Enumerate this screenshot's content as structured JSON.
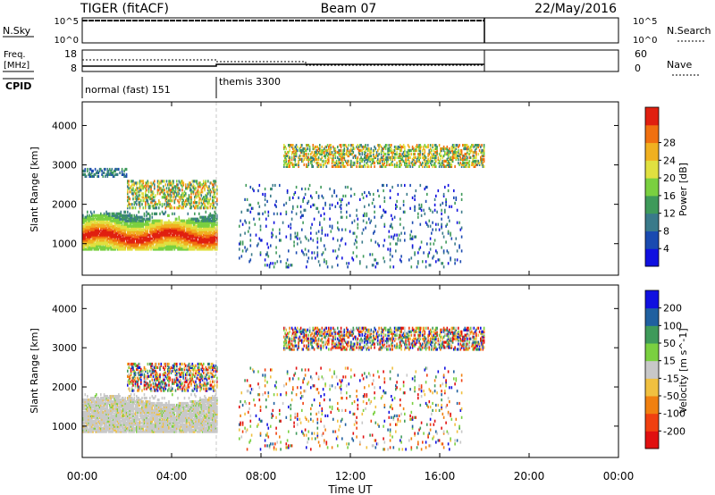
{
  "header": {
    "title_left": "TIGER (fitACF)",
    "title_center": "Beam 07",
    "title_right": "22/May/2016"
  },
  "aux": {
    "nsky_label": "N.Sky",
    "nsky_ticks": [
      "10^5",
      "10^0"
    ],
    "nsearch_label": "N.Search",
    "nsearch_ticks": [
      "10^5",
      "10^0"
    ],
    "freq_label_1": "Freq.",
    "freq_label_2": "[MHz]",
    "freq_ticks": [
      "18",
      "8"
    ],
    "nave_label": "Nave",
    "nave_ticks": [
      "60",
      "0"
    ],
    "cpid_label": "CPID",
    "cpid_modes": [
      {
        "name": "normal (fast) 151",
        "start_hour": 0,
        "end_hour": 6
      },
      {
        "name": "themis 3300",
        "start_hour": 6,
        "end_hour": 18
      }
    ]
  },
  "chart_data": [
    {
      "type": "heatmap",
      "title": "",
      "xlabel": "Time UT",
      "ylabel": "Slant Range [km]",
      "xlim": [
        0,
        24
      ],
      "ylim": [
        200,
        4600
      ],
      "x_ticks": [
        "00:00",
        "04:00",
        "08:00",
        "12:00",
        "16:00",
        "20:00",
        "00:00"
      ],
      "y_ticks": [
        {
          "value": 1000,
          "label": "1000"
        },
        {
          "value": 2000,
          "label": "2000"
        },
        {
          "value": 3000,
          "label": "3000"
        },
        {
          "value": 4000,
          "label": "4000"
        }
      ],
      "colorbar": {
        "label": "Power [dB]",
        "ticks": [
          "4",
          "8",
          "12",
          "16",
          "20",
          "24",
          "28"
        ],
        "range": [
          0,
          32
        ],
        "colors": [
          "#1010e0",
          "#1a4ab0",
          "#3a7a8a",
          "#3f9a5a",
          "#7ad040",
          "#e0e040",
          "#f0b020",
          "#f07010",
          "#e02010"
        ]
      },
      "scatter_regions": [
        {
          "hours": [
            0,
            6
          ],
          "range_km": [
            850,
            1800
          ],
          "level": "high"
        },
        {
          "hours": [
            2,
            6
          ],
          "range_km": [
            1900,
            2600
          ],
          "level": "medium"
        },
        {
          "hours": [
            0,
            2
          ],
          "range_km": [
            2700,
            2900
          ],
          "level": "low"
        },
        {
          "hours": [
            9,
            18
          ],
          "range_km": [
            2950,
            3500
          ],
          "level": "medium"
        },
        {
          "hours": [
            7,
            17
          ],
          "range_km": [
            400,
            2500
          ],
          "level": "sparse"
        }
      ]
    },
    {
      "type": "heatmap",
      "title": "",
      "xlabel": "Time UT",
      "ylabel": "Slant Range [km]",
      "xlim": [
        0,
        24
      ],
      "ylim": [
        200,
        4600
      ],
      "x_ticks": [
        "00:00",
        "04:00",
        "08:00",
        "12:00",
        "16:00",
        "20:00",
        "00:00"
      ],
      "y_ticks": [
        {
          "value": 1000,
          "label": "1000"
        },
        {
          "value": 2000,
          "label": "2000"
        },
        {
          "value": 3000,
          "label": "3000"
        },
        {
          "value": 4000,
          "label": "4000"
        }
      ],
      "colorbar": {
        "label": "Velocity [m s^-1]",
        "ticks": [
          "200",
          "100",
          "50",
          "15",
          "-15",
          "-50",
          "-100",
          "-200"
        ],
        "range": [
          -250,
          250
        ],
        "colors": [
          "#1010e0",
          "#2060a0",
          "#3f9a5a",
          "#7ad040",
          "#c8c8c8",
          "#f0c040",
          "#f08010",
          "#f04010",
          "#e01010"
        ]
      },
      "scatter_regions": [
        {
          "hours": [
            0,
            6
          ],
          "range_km": [
            850,
            1800
          ],
          "level": "ground"
        },
        {
          "hours": [
            2,
            6
          ],
          "range_km": [
            1900,
            2600
          ],
          "level": "mixed"
        },
        {
          "hours": [
            9,
            18
          ],
          "range_km": [
            2950,
            3500
          ],
          "level": "mixed"
        },
        {
          "hours": [
            7,
            17
          ],
          "range_km": [
            400,
            2500
          ],
          "level": "sparse"
        }
      ]
    }
  ]
}
